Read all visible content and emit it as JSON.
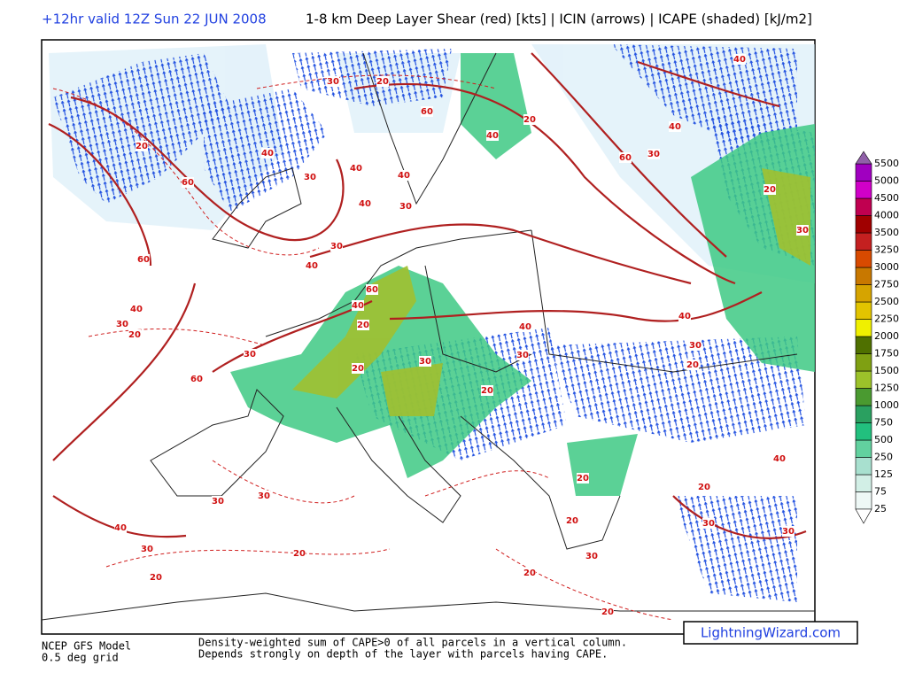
{
  "header": {
    "valid_time": "+12hr valid 12Z Sun 22 JUN 2008",
    "title": "1-8 km Deep Layer Shear (red) [kts] | ICIN (arrows) | ICAPE (shaded) [kJ/m2]"
  },
  "legend": {
    "levels": [
      25,
      75,
      125,
      250,
      500,
      750,
      1000,
      1250,
      1500,
      1750,
      2000,
      2250,
      2500,
      2750,
      3000,
      3250,
      3500,
      4000,
      4500,
      5000,
      5500
    ],
    "colors": [
      "#eef8f6",
      "#d2efe6",
      "#a8e0cf",
      "#62d19f",
      "#22c07e",
      "#2aa060",
      "#4a9a30",
      "#9cc22a",
      "#7fa012",
      "#4f7000",
      "#f0f000",
      "#e2c400",
      "#d6a400",
      "#c87800",
      "#d84a00",
      "#c42020",
      "#a00000",
      "#c00050",
      "#d000c8",
      "#a000c0"
    ],
    "over_color": "#9060a8",
    "under_color": "#ffffff"
  },
  "contour_labels": [
    30,
    20,
    20,
    60,
    60,
    30,
    20,
    40,
    40,
    30,
    40,
    30,
    30,
    40,
    40,
    40,
    60,
    40,
    20,
    60,
    40,
    30,
    40,
    20,
    30,
    40,
    40,
    30,
    20,
    60,
    40,
    20,
    20,
    30,
    20,
    30,
    30,
    60,
    40,
    30,
    30,
    30,
    20,
    20,
    20,
    30,
    20,
    30,
    40,
    20,
    30,
    20,
    20
  ],
  "footer": {
    "model": "NCEP GFS Model",
    "grid": "0.5 deg grid",
    "note_line1": "Density-weighted sum of CAPE>0 of all parcels in a vertical column.",
    "note_line2": "Depends strongly on depth of the layer with parcels having CAPE.",
    "credit": "LightningWizard.com"
  }
}
